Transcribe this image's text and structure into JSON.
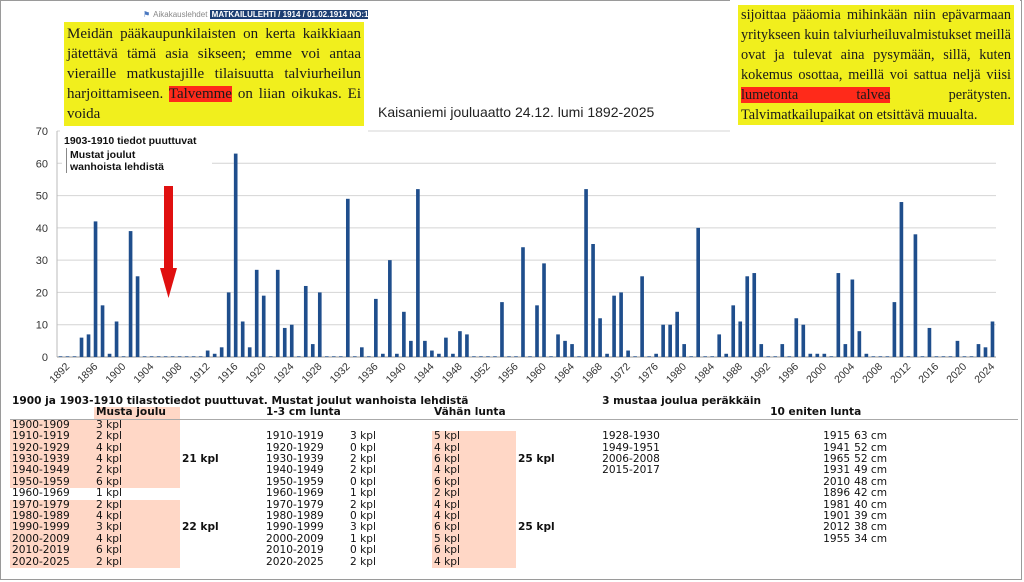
{
  "clipping_left": {
    "breadcrumb": "Aikakauslehdet",
    "title": "MATKAILULEHTI / 1914 / 01.02.1914 NO:1",
    "line1": "Meidän pääkaupunkilaisten on kerta kaikkiaan jätettävä tämä asia sikseen; emme voi antaa vieraille matkustajille tilaisuutta talviurheilun harjoittamiseen.",
    "highlight": "Talvemme",
    "line2": " on liian oikukas. Ei voida"
  },
  "clipping_right": {
    "text1": "sijoittaa pääomia mihinkään niin epävarmaan yritykseen kuin talviurheiluvalmistukset meillä ovat ja tulevat aina pysymään, sillä, kuten kokemus osottaa, meillä voi sattua neljä viisi ",
    "highlight": "lumetonta talvea",
    "text2": " perätysten. Talvimatkailupaikat on etsittävä muualta."
  },
  "note": {
    "line1": "1903-1910 tiedot puuttuvat",
    "line2": "Mustat joulut",
    "line3": "wanhoista lehdistä"
  },
  "colors": {
    "bar": "#1f4e8c",
    "arrow": "#e01010",
    "highlight": "#f1ef1d",
    "table_fill": "#ffd7c6"
  },
  "chart_data": {
    "type": "bar",
    "title": "Kaisaniemi jouluaatto 24.12. lumi 1892-2025",
    "xlabel": "",
    "ylabel": "",
    "ylim": [
      0,
      70
    ],
    "yticks": [
      0,
      10,
      20,
      30,
      40,
      50,
      60,
      70
    ],
    "xticks": [
      1892,
      1896,
      1900,
      1904,
      1908,
      1912,
      1916,
      1920,
      1924,
      1928,
      1932,
      1936,
      1940,
      1944,
      1948,
      1952,
      1956,
      1960,
      1964,
      1968,
      1972,
      1976,
      1980,
      1984,
      1988,
      1992,
      1996,
      2000,
      2004,
      2008,
      2012,
      2016,
      2020,
      2024
    ],
    "x_start": 1892,
    "values": [
      0,
      0,
      0,
      6,
      7,
      42,
      16,
      1,
      11,
      0,
      39,
      25,
      0,
      0,
      0,
      0,
      0,
      0,
      0,
      0,
      0,
      2,
      1,
      3,
      20,
      63,
      11,
      3,
      27,
      19,
      0,
      27,
      9,
      10,
      0,
      22,
      4,
      20,
      0,
      0,
      0,
      49,
      0,
      3,
      0,
      18,
      1,
      30,
      1,
      14,
      5,
      52,
      5,
      2,
      1,
      6,
      1,
      8,
      7,
      0,
      0,
      0,
      0,
      17,
      0,
      0,
      34,
      0,
      16,
      29,
      0,
      7,
      5,
      4,
      0,
      52,
      35,
      12,
      1,
      19,
      20,
      2,
      0,
      25,
      0,
      1,
      10,
      10,
      14,
      4,
      0,
      40,
      0,
      0,
      7,
      1,
      16,
      11,
      25,
      26,
      4,
      0,
      0,
      4,
      0,
      12,
      10,
      1,
      1,
      1,
      0,
      26,
      4,
      24,
      8,
      1,
      0,
      0,
      0,
      17,
      48,
      0,
      38,
      0,
      9,
      0,
      0,
      0,
      5,
      0,
      0,
      4,
      3,
      11
    ]
  },
  "table": {
    "header": [
      "1900 ja 1903-1910 tilastotiedot puuttuvat. Mustat joulut wanhoista lehdistä",
      "3 mustaa joulua peräkkäin"
    ],
    "col_musta": "Musta joulu",
    "col_lunta": "1-3 cm lunta",
    "col_vahan": "Vähän lunta",
    "col_top": "10 eniten lunta",
    "rows": [
      [
        "1900-1909",
        "3 kpl",
        "",
        "",
        "",
        "",
        "",
        "",
        "",
        ""
      ],
      [
        "1910-1919",
        "2 kpl",
        "",
        "1910-1919",
        "3 kpl",
        "5 kpl",
        "",
        "1928-1930",
        "1915",
        "63 cm"
      ],
      [
        "1920-1929",
        "4 kpl",
        "",
        "1920-1929",
        "0 kpl",
        "4 kpl",
        "",
        "1949-1951",
        "1941",
        "52 cm"
      ],
      [
        "1930-1939",
        "4 kpl",
        "21 kpl",
        "1930-1939",
        "2 kpl",
        "6 kpl",
        "25 kpl",
        "2006-2008",
        "1965",
        "52 cm"
      ],
      [
        "1940-1949",
        "2 kpl",
        "",
        "1940-1949",
        "2 kpl",
        "4 kpl",
        "",
        "2015-2017",
        "1931",
        "49 cm"
      ],
      [
        "1950-1959",
        "6 kpl",
        "",
        "1950-1959",
        "0 kpl",
        "6 kpl",
        "",
        "",
        "2010",
        "48 cm"
      ],
      [
        "1960-1969",
        "1 kpl",
        "",
        "1960-1969",
        "1 kpl",
        "2 kpl",
        "",
        "",
        "1896",
        "42 cm"
      ],
      [
        "1970-1979",
        "2 kpl",
        "",
        "1970-1979",
        "2 kpl",
        "4 kpl",
        "",
        "",
        "1981",
        "40 cm"
      ],
      [
        "1980-1989",
        "4 kpl",
        "",
        "1980-1989",
        "0 kpl",
        "4 kpl",
        "",
        "",
        "1901",
        "39 cm"
      ],
      [
        "1990-1999",
        "3 kpl",
        "22 kpl",
        "1990-1999",
        "3 kpl",
        "6 kpl",
        "25 kpl",
        "",
        "2012",
        "38 cm"
      ],
      [
        "2000-2009",
        "4 kpl",
        "",
        "2000-2009",
        "1 kpl",
        "5 kpl",
        "",
        "",
        "1955",
        "34 cm"
      ],
      [
        "2010-2019",
        "6 kpl",
        "",
        "2010-2019",
        "0 kpl",
        "6 kpl",
        "",
        "",
        "",
        ""
      ],
      [
        "2020-2025",
        "2 kpl",
        "",
        "2020-2025",
        "2 kpl",
        "4 kpl",
        "",
        "",
        "",
        ""
      ]
    ]
  }
}
